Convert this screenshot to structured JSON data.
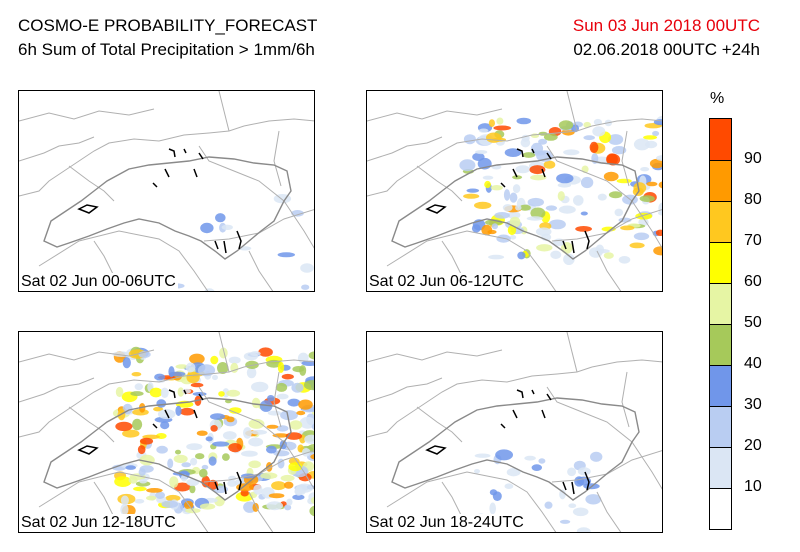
{
  "header": {
    "title": "COSMO-E PROBABILITY_FORECAST",
    "subtitle": "6h Sum of Total Precipitation > 1mm/6h",
    "valid_time": "Sun 03 Jun 2018 00UTC",
    "run_time": "02.06.2018 00UTC +24h",
    "valid_time_color": "#e8000b"
  },
  "panels": [
    {
      "label": "Sat 02 Jun 00-06UTC",
      "coverage": "very low"
    },
    {
      "label": "Sat 02 Jun 06-12UTC",
      "coverage": "moderate, north-east and south Alps"
    },
    {
      "label": "Sat 02 Jun 12-18UTC",
      "coverage": "high, central and eastern Alps"
    },
    {
      "label": "Sat 02 Jun 18-24UTC",
      "coverage": "very low"
    }
  ],
  "colorbar": {
    "unit": "%",
    "tick_labels": [
      "10",
      "20",
      "30",
      "40",
      "50",
      "60",
      "70",
      "80",
      "90"
    ],
    "colors": [
      "#ffffff",
      "#dbe6f4",
      "#b9cdf2",
      "#7096ea",
      "#a6c95a",
      "#e6f5a4",
      "#ffff00",
      "#ffc81f",
      "#ff9a00",
      "#ff4a00"
    ]
  }
}
